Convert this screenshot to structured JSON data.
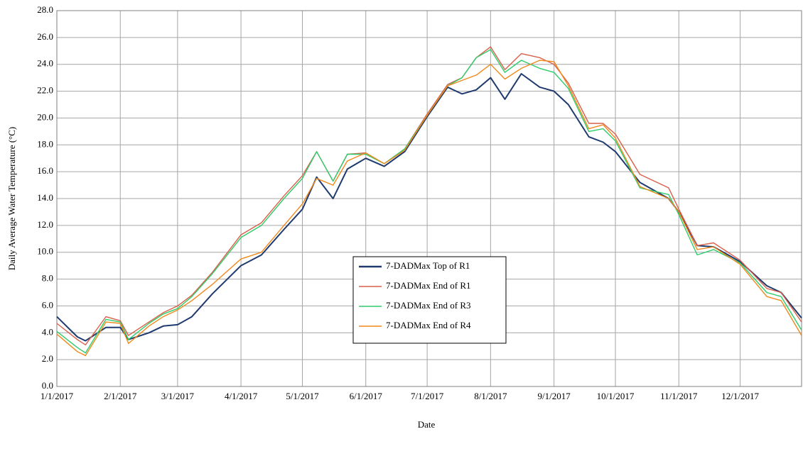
{
  "chart_data": {
    "type": "line",
    "x_label": "Date",
    "y_label": "Daily Average Water Temperature (°C)",
    "x": [
      "2017-01-01",
      "2017-01-11",
      "2017-01-15",
      "2017-01-25",
      "2017-02-01",
      "2017-02-05",
      "2017-02-15",
      "2017-02-22",
      "2017-03-01",
      "2017-03-08",
      "2017-03-18",
      "2017-04-01",
      "2017-04-11",
      "2017-04-22",
      "2017-05-01",
      "2017-05-08",
      "2017-05-16",
      "2017-05-23",
      "2017-06-01",
      "2017-06-10",
      "2017-06-20",
      "2017-07-01",
      "2017-07-11",
      "2017-07-18",
      "2017-07-25",
      "2017-08-01",
      "2017-08-08",
      "2017-08-16",
      "2017-08-25",
      "2017-09-01",
      "2017-09-08",
      "2017-09-18",
      "2017-09-25",
      "2017-10-01",
      "2017-10-13",
      "2017-10-27",
      "2017-11-01",
      "2017-11-10",
      "2017-11-18",
      "2017-12-01",
      "2017-12-14",
      "2017-12-21",
      "2017-12-31"
    ],
    "series": [
      {
        "name": "7-DADMax Top of R1",
        "color": "#1f3a6e",
        "values": [
          5.2,
          3.7,
          3.4,
          4.4,
          4.4,
          3.5,
          4.0,
          4.5,
          4.6,
          5.2,
          6.9,
          9.0,
          9.8,
          11.7,
          13.2,
          15.6,
          14.0,
          16.2,
          17.0,
          16.4,
          17.5,
          20.1,
          22.3,
          21.8,
          22.1,
          23.0,
          21.4,
          23.3,
          22.3,
          22.0,
          21.0,
          18.6,
          18.2,
          17.5,
          15.2,
          14.0,
          13.0,
          10.5,
          10.4,
          9.3,
          7.5,
          7.0,
          5.1
        ]
      },
      {
        "name": "7-DADMax End of R1",
        "color": "#d9604a",
        "values": [
          4.7,
          3.5,
          3.1,
          5.2,
          4.9,
          3.8,
          4.8,
          5.5,
          6.0,
          6.8,
          8.5,
          11.3,
          12.2,
          14.2,
          15.7,
          17.5,
          15.3,
          17.3,
          17.4,
          16.6,
          17.7,
          20.3,
          22.5,
          23.0,
          24.5,
          25.3,
          23.6,
          24.8,
          24.5,
          24.0,
          22.6,
          19.6,
          19.6,
          18.8,
          15.8,
          14.8,
          13.2,
          10.5,
          10.7,
          9.4,
          7.3,
          7.0,
          4.8
        ]
      },
      {
        "name": "7-DADMax End of R3",
        "color": "#2ecc6a",
        "values": [
          4.1,
          2.9,
          2.5,
          5.0,
          4.8,
          3.5,
          4.7,
          5.4,
          5.8,
          6.7,
          8.4,
          11.1,
          12.0,
          14.0,
          15.5,
          17.5,
          15.3,
          17.3,
          17.3,
          16.6,
          17.7,
          20.2,
          22.4,
          23.0,
          24.5,
          25.1,
          23.4,
          24.3,
          23.7,
          23.4,
          22.2,
          19.0,
          19.2,
          18.3,
          14.8,
          14.3,
          12.8,
          9.8,
          10.2,
          9.2,
          7.0,
          6.7,
          4.2
        ]
      },
      {
        "name": "7-DADMax End of R4",
        "color": "#f0891c",
        "values": [
          3.9,
          2.6,
          2.3,
          4.8,
          4.7,
          3.2,
          4.5,
          5.2,
          5.7,
          6.4,
          7.6,
          9.5,
          10.0,
          12.0,
          13.6,
          15.5,
          15.0,
          16.8,
          17.4,
          16.6,
          17.6,
          20.2,
          22.4,
          22.8,
          23.2,
          24.0,
          22.9,
          23.7,
          24.3,
          24.2,
          22.4,
          19.2,
          19.5,
          18.5,
          14.9,
          14.0,
          13.0,
          10.2,
          10.4,
          9.1,
          6.7,
          6.4,
          3.8
        ]
      }
    ],
    "xlim": [
      "2017-01-01",
      "2017-12-31"
    ],
    "xticks": [
      {
        "value": "2017-01-01",
        "label": "1/1/2017"
      },
      {
        "value": "2017-02-01",
        "label": "2/1/2017"
      },
      {
        "value": "2017-03-01",
        "label": "3/1/2017"
      },
      {
        "value": "2017-04-01",
        "label": "4/1/2017"
      },
      {
        "value": "2017-05-01",
        "label": "5/1/2017"
      },
      {
        "value": "2017-06-01",
        "label": "6/1/2017"
      },
      {
        "value": "2017-07-01",
        "label": "7/1/2017"
      },
      {
        "value": "2017-08-01",
        "label": "8/1/2017"
      },
      {
        "value": "2017-09-01",
        "label": "9/1/2017"
      },
      {
        "value": "2017-10-01",
        "label": "10/1/2017"
      },
      {
        "value": "2017-11-01",
        "label": "11/1/2017"
      },
      {
        "value": "2017-12-01",
        "label": "12/1/2017"
      }
    ],
    "ylim": [
      0,
      28
    ],
    "yticks": [
      {
        "value": 0,
        "label": "0.0"
      },
      {
        "value": 2,
        "label": "2.0"
      },
      {
        "value": 4,
        "label": "4.0"
      },
      {
        "value": 6,
        "label": "6.0"
      },
      {
        "value": 8,
        "label": "8.0"
      },
      {
        "value": 10,
        "label": "10.0"
      },
      {
        "value": 12,
        "label": "12.0"
      },
      {
        "value": 14,
        "label": "14.0"
      },
      {
        "value": 16,
        "label": "16.0"
      },
      {
        "value": 18,
        "label": "18.0"
      },
      {
        "value": 20,
        "label": "20.0"
      },
      {
        "value": 22,
        "label": "22.0"
      },
      {
        "value": 24,
        "label": "24.0"
      },
      {
        "value": 26,
        "label": "26.0"
      },
      {
        "value": 28,
        "label": "28.0"
      }
    ],
    "grid": true
  }
}
